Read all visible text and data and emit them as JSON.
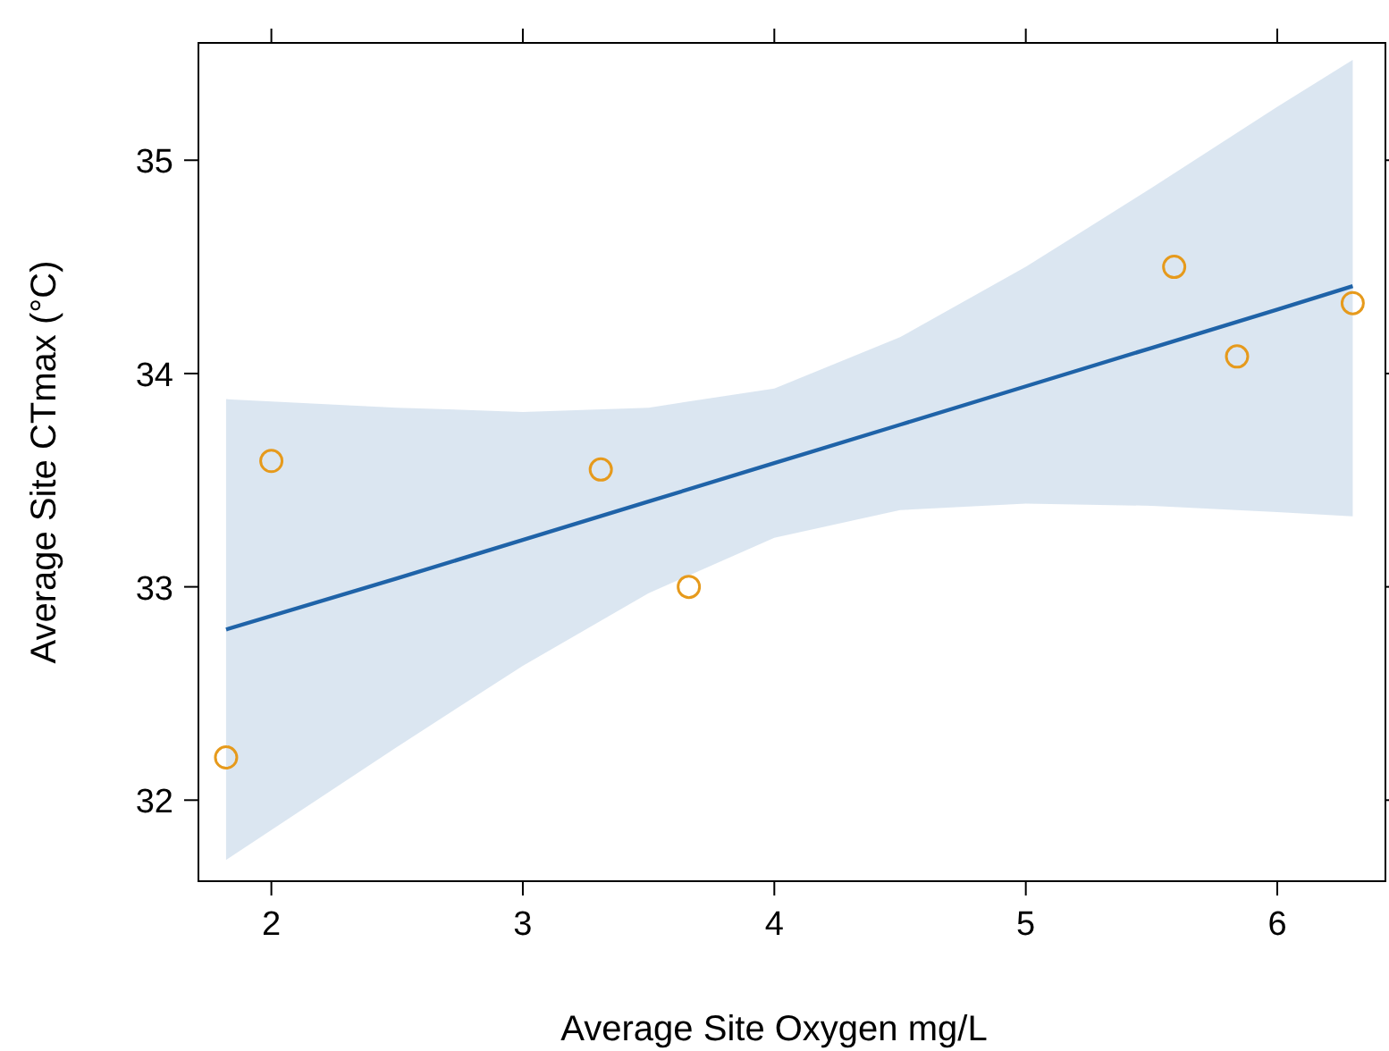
{
  "chart_data": {
    "type": "scatter",
    "xlabel": "Average Site Oxygen mg/L",
    "ylabel": "Average Site CTmax (°C)",
    "xlim": [
      1.71,
      6.43
    ],
    "ylim": [
      31.62,
      35.55
    ],
    "xticks": [
      2,
      3,
      4,
      5,
      6
    ],
    "yticks": [
      32,
      33,
      34,
      35
    ],
    "grid": false,
    "series": [
      {
        "type": "line",
        "color": "#1f63a8",
        "x": [
          1.82,
          2.5,
          3,
          3.5,
          4,
          4.5,
          5,
          5.5,
          6,
          6.3
        ],
        "values": [
          32.8,
          33.04,
          33.22,
          33.4,
          33.58,
          33.76,
          33.94,
          34.12,
          34.3,
          34.41
        ],
        "lower": [
          31.72,
          32.25,
          32.63,
          32.97,
          33.23,
          33.36,
          33.39,
          33.38,
          33.35,
          33.33
        ],
        "upper": [
          33.88,
          33.84,
          33.82,
          33.84,
          33.93,
          34.17,
          34.5,
          34.87,
          35.25,
          35.47
        ],
        "marker": "none",
        "line_style": "solid"
      },
      {
        "color": "#e69a1c",
        "x": [
          1.82,
          2.0,
          3.31,
          3.66,
          5.59,
          5.84,
          6.3
        ],
        "values": [
          32.2,
          33.59,
          33.55,
          33.0,
          34.5,
          34.08,
          34.33
        ],
        "marker": "circle"
      }
    ]
  }
}
